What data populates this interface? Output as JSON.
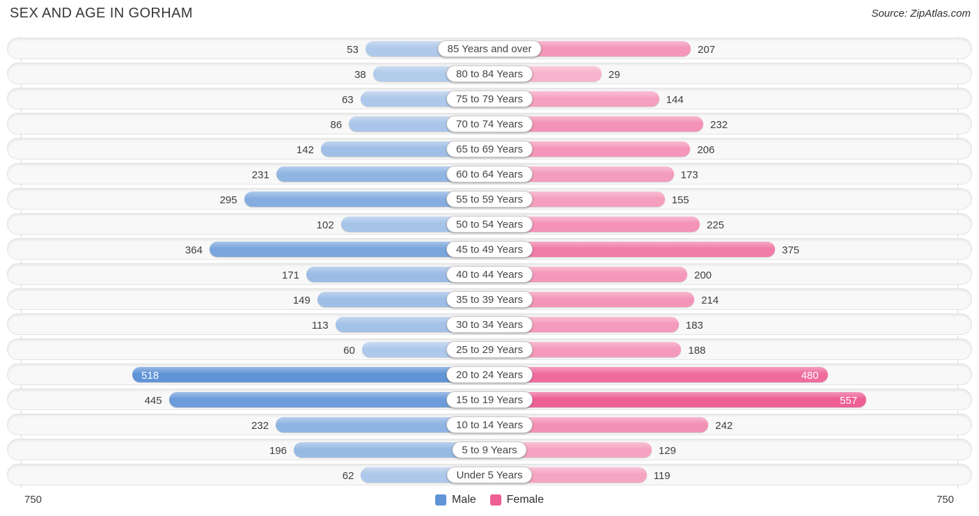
{
  "header": {
    "title": "SEX AND AGE IN GORHAM",
    "source": "Source: ZipAtlas.com"
  },
  "footer": {
    "axis_left": "750",
    "axis_right": "750"
  },
  "legend": {
    "male_label": "Male",
    "female_label": "Female"
  },
  "colors": {
    "male": "#6094d6",
    "female": "#ee5f94",
    "row_background": "#f8f8f8",
    "value_text": "#3d3d3d"
  },
  "chart_data": {
    "type": "bar",
    "subtype": "population-pyramid",
    "title": "SEX AND AGE IN GORHAM",
    "source": "Source: ZipAtlas.com",
    "axis_max": 750,
    "axis_tick_labels": [
      "750",
      "750"
    ],
    "legend_position": "bottom",
    "grid": false,
    "categories": [
      "85 Years and over",
      "80 to 84 Years",
      "75 to 79 Years",
      "70 to 74 Years",
      "65 to 69 Years",
      "60 to 64 Years",
      "55 to 59 Years",
      "50 to 54 Years",
      "45 to 49 Years",
      "40 to 44 Years",
      "35 to 39 Years",
      "30 to 34 Years",
      "25 to 29 Years",
      "20 to 24 Years",
      "15 to 19 Years",
      "10 to 14 Years",
      "5 to 9 Years",
      "Under 5 Years"
    ],
    "series": [
      {
        "name": "Male",
        "color": "#6094d6",
        "values": [
          53,
          38,
          63,
          86,
          142,
          231,
          295,
          102,
          364,
          171,
          149,
          113,
          60,
          518,
          445,
          232,
          196,
          62
        ],
        "labels_inside": [
          false,
          false,
          false,
          false,
          false,
          false,
          false,
          false,
          false,
          false,
          false,
          false,
          false,
          true,
          false,
          false,
          false,
          false
        ]
      },
      {
        "name": "Female",
        "color": "#ee5f94",
        "values": [
          207,
          29,
          144,
          232,
          206,
          173,
          155,
          225,
          375,
          200,
          214,
          183,
          188,
          480,
          557,
          242,
          129,
          119
        ],
        "labels_inside": [
          false,
          false,
          false,
          false,
          false,
          false,
          false,
          false,
          false,
          false,
          false,
          false,
          false,
          true,
          true,
          false,
          false,
          false
        ]
      }
    ]
  }
}
